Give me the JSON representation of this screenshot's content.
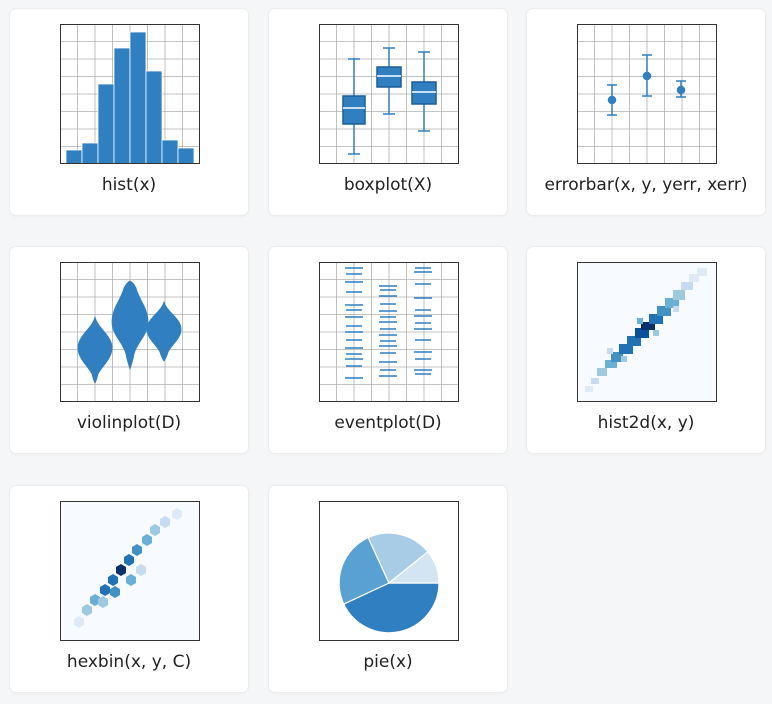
{
  "gallery": {
    "items": [
      {
        "label": "hist(x)",
        "plot": "histogram"
      },
      {
        "label": "boxplot(X)",
        "plot": "box-plot"
      },
      {
        "label": "errorbar(x, y, yerr, xerr)",
        "plot": "error-bar-plot"
      },
      {
        "label": "violinplot(D)",
        "plot": "violin-plot"
      },
      {
        "label": "eventplot(D)",
        "plot": "event-plot"
      },
      {
        "label": "hist2d(x, y)",
        "plot": "2d-histogram"
      },
      {
        "label": "hexbin(x, y, C)",
        "plot": "hexbin-plot"
      },
      {
        "label": "pie(x)",
        "plot": "pie-chart"
      }
    ]
  },
  "colors": {
    "primary": "#2f7fc1",
    "dark": "#08306b",
    "light": "#c6dbef",
    "grid": "#b0b0b0",
    "card": "#ffffff",
    "page": "#f5f6f7"
  }
}
